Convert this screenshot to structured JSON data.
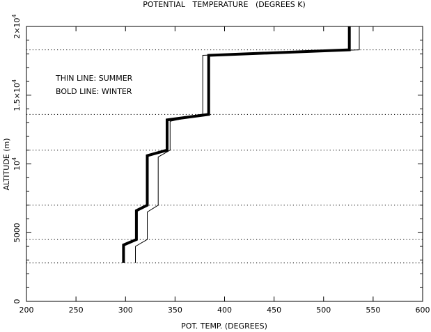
{
  "chart_data": {
    "type": "line",
    "title": "POTENTIAL   TEMPERATURE   (DEGREES K)",
    "xlabel": "POT. TEMP. (DEGREES)",
    "ylabel": "ALTITUDE (m)",
    "xlim": [
      200,
      600
    ],
    "ylim": [
      0,
      20000
    ],
    "x_ticks": [
      200,
      250,
      300,
      350,
      400,
      450,
      500,
      550,
      600
    ],
    "y_ticks": [
      {
        "value": 0,
        "label": "0",
        "exp": ""
      },
      {
        "value": 5000,
        "label": "5000",
        "exp": ""
      },
      {
        "value": 10000,
        "label": "10",
        "exp": "4"
      },
      {
        "value": 15000,
        "label": "1.5×10",
        "exp": "4"
      },
      {
        "value": 20000,
        "label": "2×10",
        "exp": "4"
      }
    ],
    "grid": false,
    "reference_lines_y": [
      2800,
      4500,
      7000,
      11000,
      13600,
      18300
    ],
    "annotations": [
      "THIN LINE: SUMMER",
      "BOLD LINE: WINTER"
    ],
    "series": [
      {
        "name": "SUMMER",
        "style": "thin",
        "x": [
          310,
          310,
          322,
          322,
          333,
          333,
          345,
          345,
          378,
          378,
          536,
          536
        ],
        "y": [
          2800,
          4000,
          4500,
          6500,
          7000,
          10500,
          11000,
          13100,
          13600,
          17900,
          18300,
          20000
        ]
      },
      {
        "name": "WINTER",
        "style": "bold",
        "x": [
          298,
          298,
          311,
          311,
          322,
          322,
          342,
          342,
          384,
          384,
          526,
          526
        ],
        "y": [
          2800,
          4100,
          4500,
          6600,
          7000,
          10600,
          11000,
          13200,
          13600,
          17900,
          18300,
          20000
        ]
      }
    ]
  }
}
